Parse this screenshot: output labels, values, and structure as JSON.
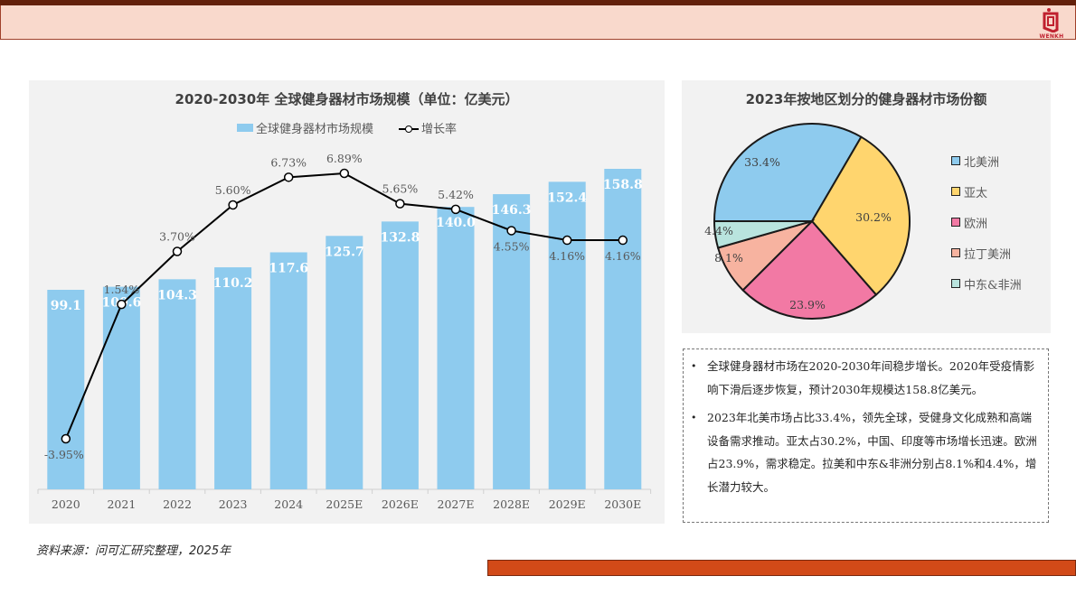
{
  "header": {
    "logo_text": "WENKH",
    "colors": {
      "top_bar": "#63200a",
      "banner": "#f9d9cc",
      "logo": "#c0202e"
    }
  },
  "left_chart": {
    "title": "2020-2030年 全球健身器材市场规模（单位：亿美元）",
    "legend": {
      "bar": "全球健身器材市场规模",
      "line": "增长率"
    }
  },
  "right_chart": {
    "title": "2023年按地区划分的健身器材市场份额"
  },
  "chart_data": [
    {
      "type": "bar",
      "title": "2020-2030年 全球健身器材市场规模（单位：亿美元）",
      "xlabel": "",
      "ylabel": "",
      "categories": [
        "2020",
        "2021",
        "2022",
        "2023",
        "2024",
        "2025E",
        "2026E",
        "2027E",
        "2028E",
        "2029E",
        "2030E"
      ],
      "series": [
        {
          "name": "全球健身器材市场规模",
          "type": "bar",
          "color": "#8ecbee",
          "values": [
            99.1,
            100.6,
            104.3,
            110.2,
            117.6,
            125.7,
            132.8,
            140.0,
            146.3,
            152.4,
            158.8
          ],
          "labels": [
            "99.1",
            "100.6",
            "104.3",
            "110.2",
            "117.6",
            "125.7",
            "132.8",
            "140.0",
            "146.3",
            "152.4",
            "158.8"
          ]
        },
        {
          "name": "增长率",
          "type": "line",
          "color": "#000000",
          "values": [
            -3.95,
            1.54,
            3.7,
            5.6,
            6.73,
            6.89,
            5.65,
            5.42,
            4.55,
            4.16,
            4.16
          ],
          "labels": [
            "-3.95%",
            "1.54%",
            "3.70%",
            "5.60%",
            "6.73%",
            "6.89%",
            "5.65%",
            "5.42%",
            "4.55%",
            "4.16%",
            "4.16%"
          ]
        }
      ],
      "grid": false,
      "legend_position": "top"
    },
    {
      "type": "pie",
      "title": "2023年按地区划分的健身器材市场份额",
      "categories": [
        "北美洲",
        "亚太",
        "欧洲",
        "拉丁美洲",
        "中东&非洲"
      ],
      "values": [
        33.4,
        30.2,
        23.9,
        8.1,
        4.4
      ],
      "labels": [
        "33.4%",
        "30.2%",
        "23.9%",
        "8.1%",
        "4.4%"
      ],
      "colors": [
        "#8ecbee",
        "#ffd56e",
        "#f279a4",
        "#f7b3a0",
        "#b9e4de"
      ],
      "legend_position": "right"
    }
  ],
  "notes": [
    "全球健身器材市场在2020-2030年间稳步增长。2020年受疫情影响下滑后逐步恢复，预计2030年规模达158.8亿美元。",
    "2023年北美市场占比33.4%，领先全球，受健身文化成熟和高端设备需求推动。亚太占30.2%，中国、印度等市场增长迅速。欧洲占23.9%，需求稳定。拉美和中东&非洲分别占8.1%和4.4%，增长潜力较大。"
  ],
  "notes_bullet": "•",
  "source": "资料来源：问可汇研究整理，2025年"
}
